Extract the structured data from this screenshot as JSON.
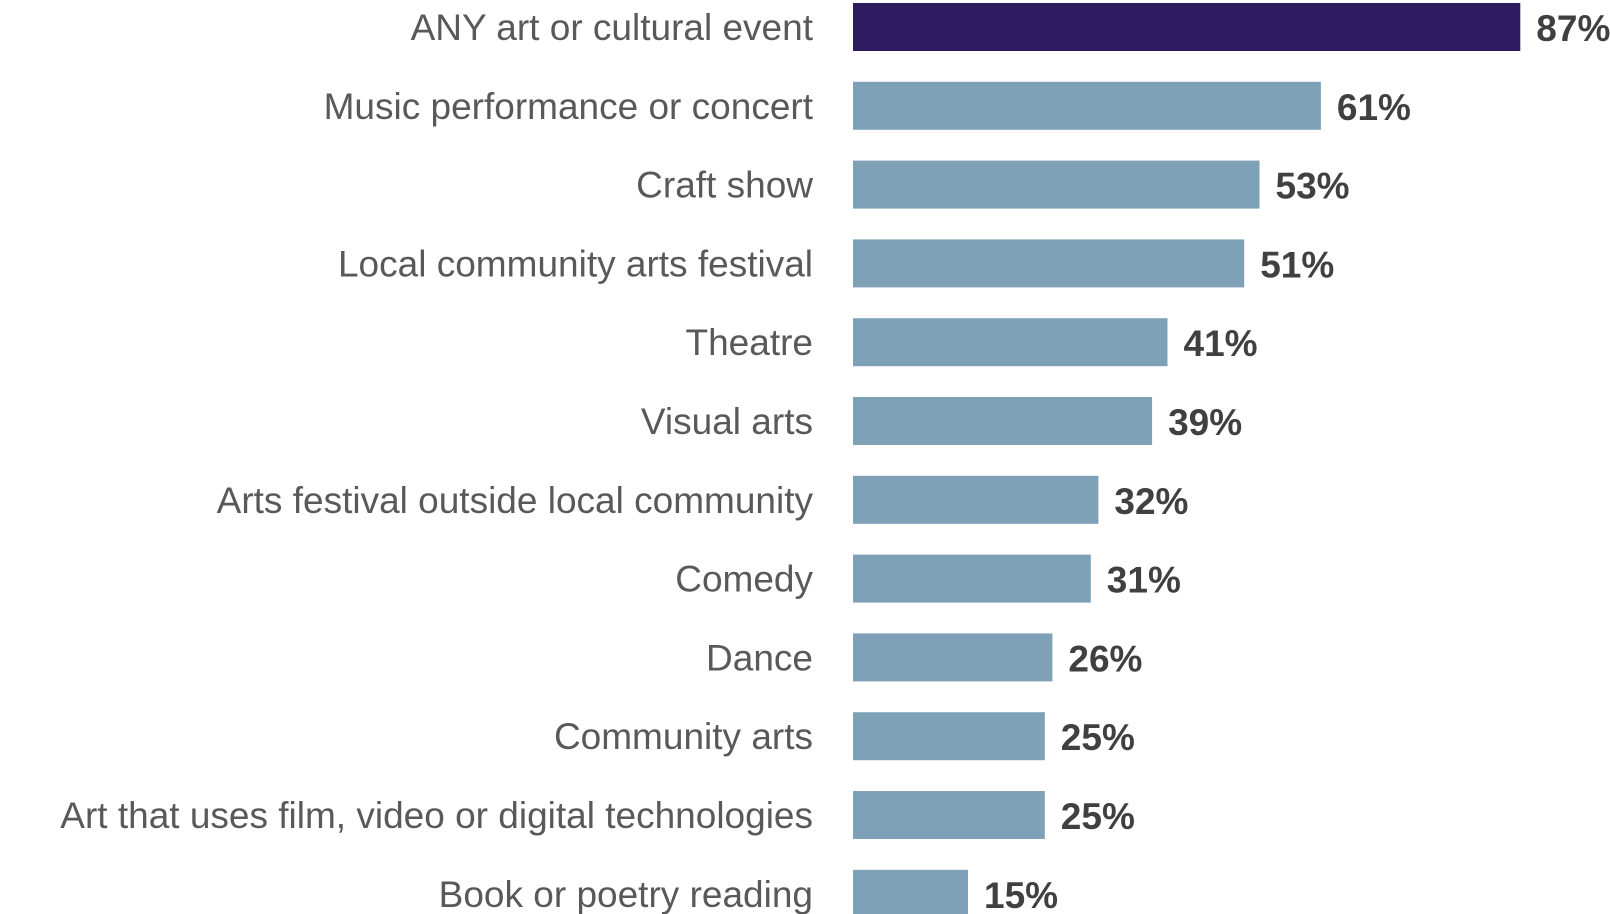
{
  "chart_data": {
    "type": "bar",
    "orientation": "horizontal",
    "categories": [
      "ANY art or cultural event",
      "Music performance or concert",
      "Craft show",
      "Local community arts festival",
      "Theatre",
      "Visual arts",
      "Arts festival outside local community",
      "Comedy",
      "Dance",
      "Community arts",
      "Art that uses film, video or digital technologies",
      "Book or poetry reading"
    ],
    "values": [
      87,
      61,
      53,
      51,
      41,
      39,
      32,
      31,
      26,
      25,
      25,
      15
    ],
    "value_labels": [
      "87%",
      "61%",
      "53%",
      "51%",
      "41%",
      "39%",
      "32%",
      "31%",
      "26%",
      "25%",
      "25%",
      "15%"
    ],
    "xlim": [
      0,
      100
    ],
    "grid": false,
    "legend": "none",
    "colors": {
      "highlight": "#2e1a5e",
      "bar": "#7fa1b8",
      "category_text": "#595959",
      "value_text": "#404040"
    },
    "highlight_index": 0
  }
}
